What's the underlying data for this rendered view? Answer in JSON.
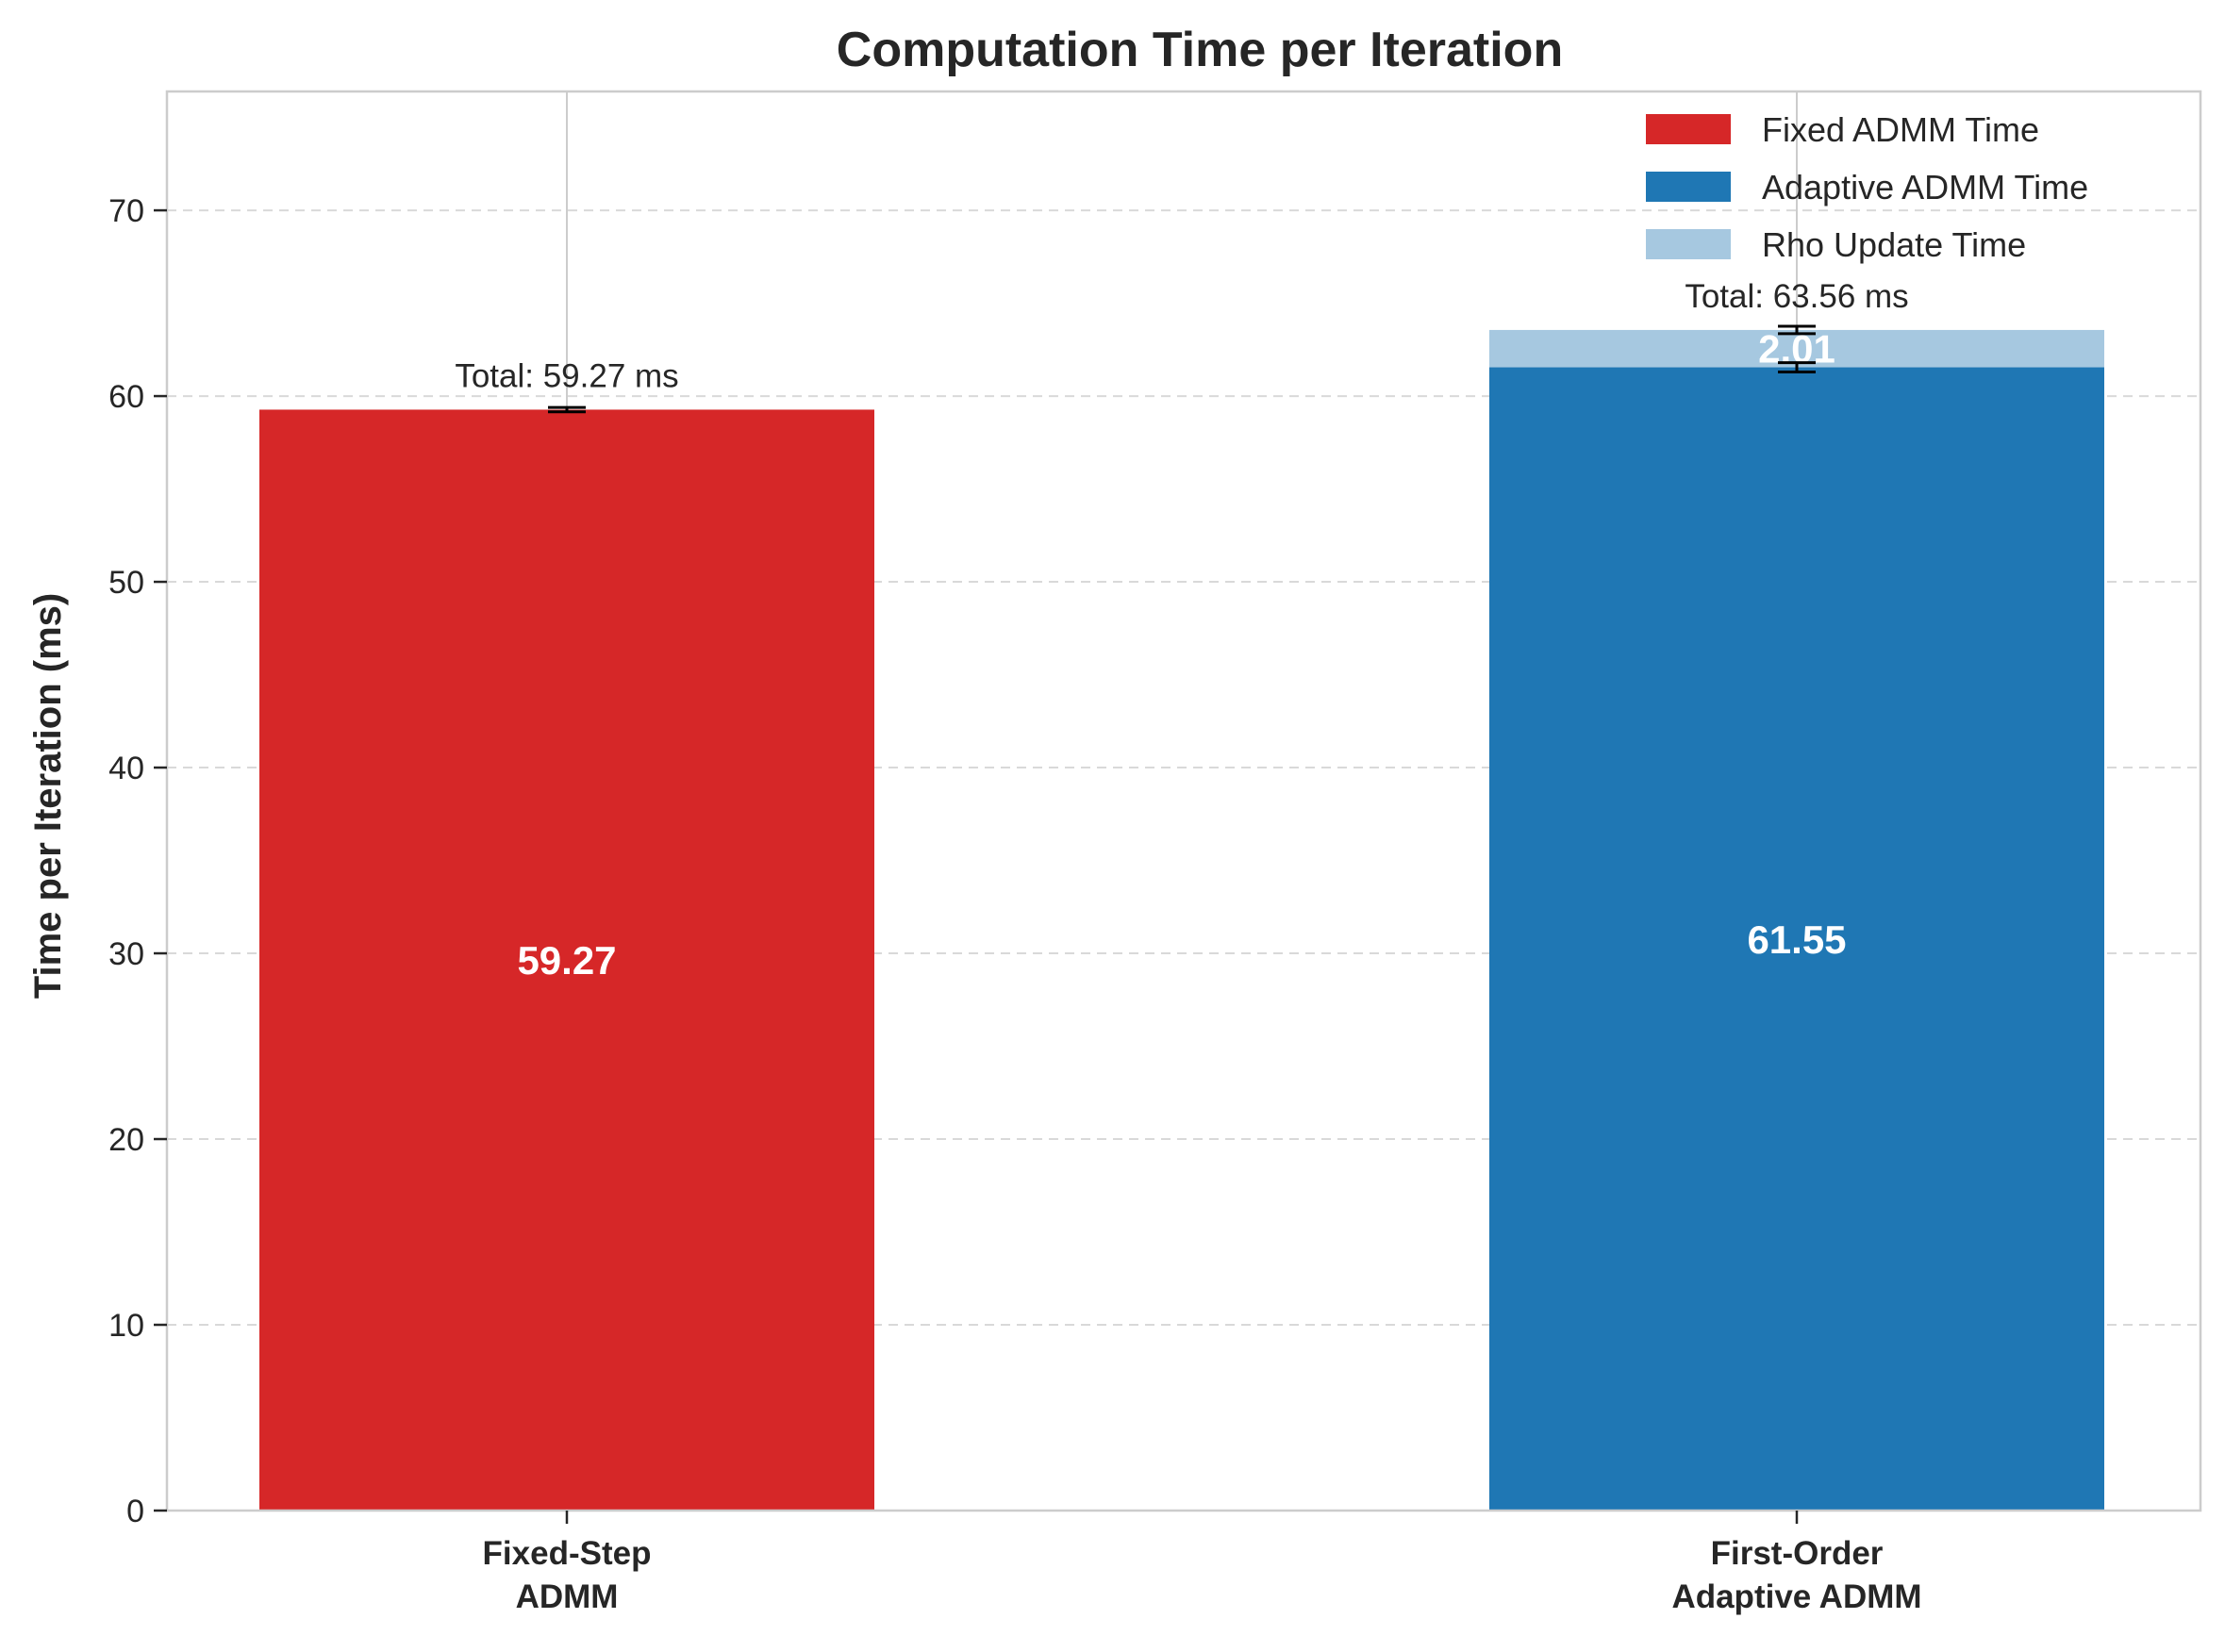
{
  "chart_data": {
    "type": "bar",
    "stacked": true,
    "title": "Computation Time per Iteration",
    "xlabel": "",
    "ylabel": "Time per Iteration (ms)",
    "ylim": [
      0,
      76.4
    ],
    "yticks": [
      0,
      10,
      20,
      30,
      40,
      50,
      60,
      70
    ],
    "grid": "y-dashed",
    "legend_position": "top-right",
    "categories": [
      [
        "Fixed-Step",
        "ADMM"
      ],
      [
        "First-Order",
        "Adaptive ADMM"
      ]
    ],
    "series": [
      {
        "name": "Fixed ADMM Time",
        "color": "#d62728",
        "values": [
          59.27,
          0
        ]
      },
      {
        "name": "Adaptive ADMM Time",
        "color": "#1f77b4",
        "values": [
          0,
          61.55
        ]
      },
      {
        "name": "Rho Update Time",
        "color": "#a6c8e0",
        "values": [
          0,
          2.01
        ]
      }
    ],
    "segment_labels": [
      {
        "category": 0,
        "series": 0,
        "text": "59.27"
      },
      {
        "category": 1,
        "series": 1,
        "text": "61.55"
      },
      {
        "category": 1,
        "series": 2,
        "text": "2.01"
      }
    ],
    "totals": [
      "Total: 59.27 ms",
      "Total: 63.56 ms"
    ],
    "error_bars": [
      {
        "category": 0,
        "center": 59.27,
        "low": 59.15,
        "high": 59.39
      },
      {
        "category": 1,
        "center": 61.55,
        "low": 61.3,
        "high": 61.8
      },
      {
        "category": 1,
        "center": 63.56,
        "low": 63.36,
        "high": 63.76
      }
    ],
    "colors": {
      "axis": "#cccccc",
      "grid": "#d9d9d9",
      "vgrid": "#cccccc",
      "text": "#262626"
    }
  }
}
